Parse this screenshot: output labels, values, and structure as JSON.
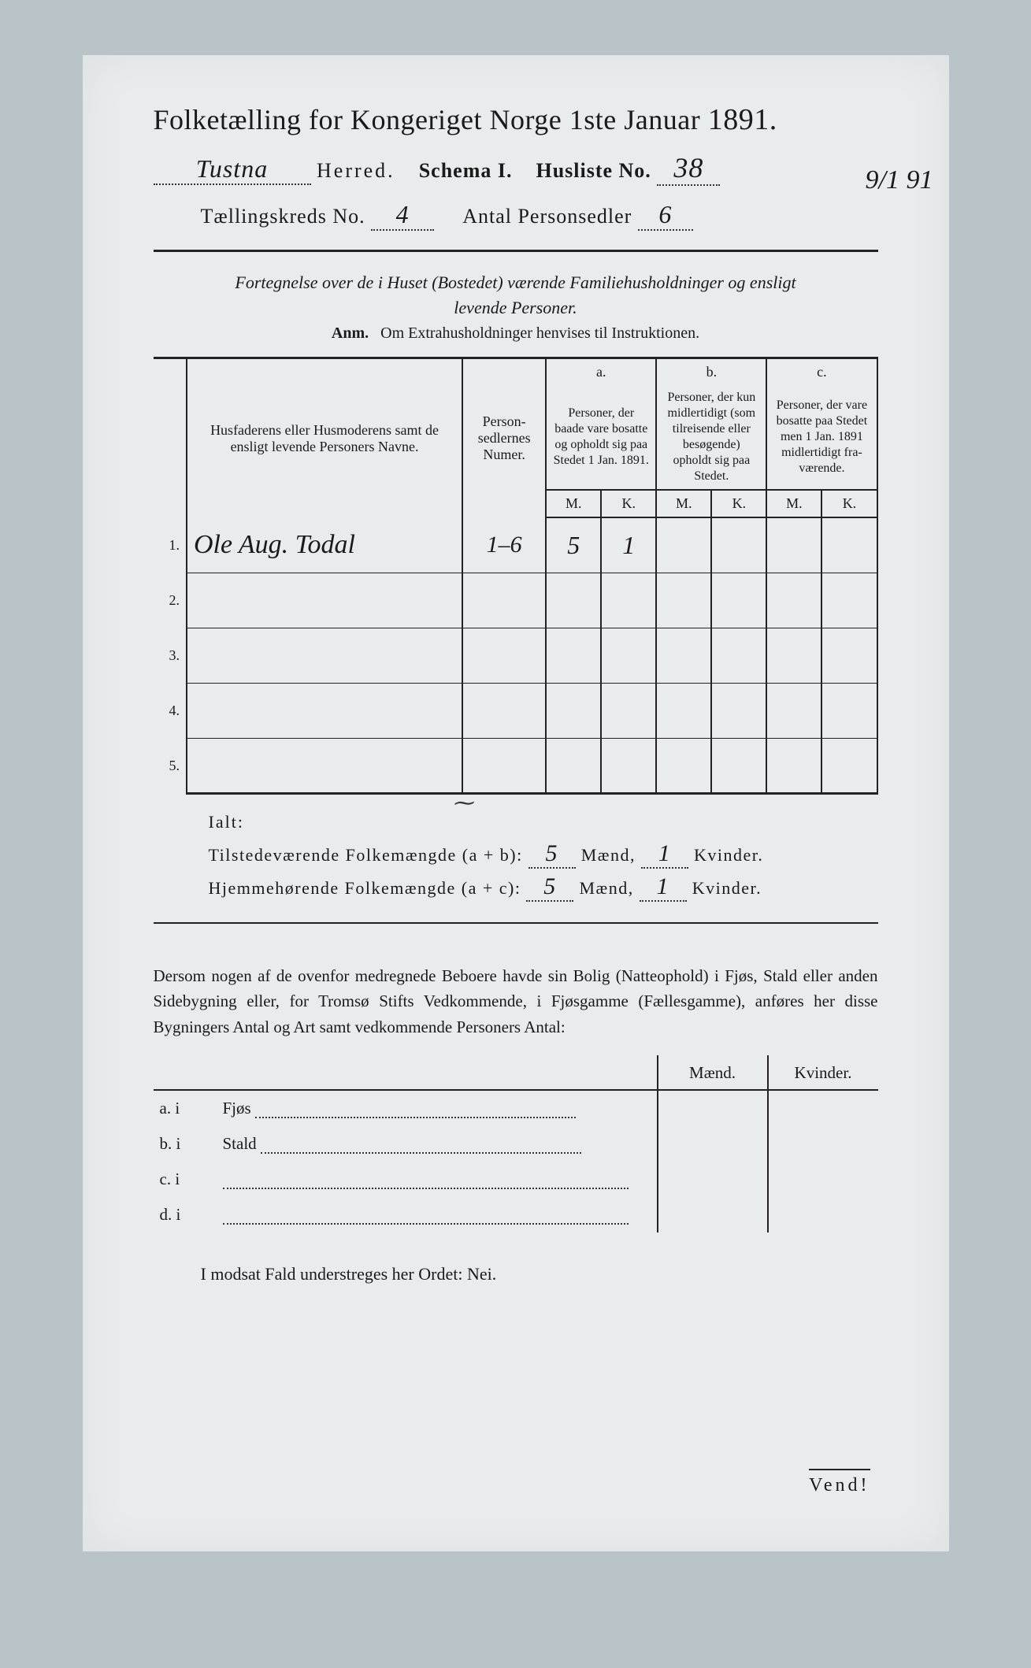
{
  "colors": {
    "page_bg": "#e8ecec",
    "outer_bg": "#b8c4c8",
    "ink": "#1a1a1a",
    "rule": "#222222",
    "dotted": "#333333"
  },
  "typography": {
    "title_size_pt": 36,
    "body_size_pt": 21,
    "handwriting_family": "cursive"
  },
  "header": {
    "title_prefix": "Folketælling for Kongeriget Norge 1ste Januar",
    "year": "1891.",
    "herred_value": "Tustna",
    "herred_label": "Herred.",
    "schema_label": "Schema I.",
    "husliste_label": "Husliste No.",
    "husliste_no": "38",
    "kreds_label": "Tællingskreds No.",
    "kreds_no": "4",
    "antal_label": "Antal Personsedler",
    "antal_value": "6",
    "margin_date": "9/1 91"
  },
  "description": {
    "line1": "Fortegnelse over de i Huset (Bostedet) værende Familiehusholdninger og ensligt",
    "line2": "levende Personer.",
    "anm_label": "Anm.",
    "anm_text": "Om Extrahusholdninger henvises til Instruktionen."
  },
  "table": {
    "type": "table",
    "col_name": "Husfaderens eller Husmode­rens samt de ensligt levende Personers Navne.",
    "col_num": "Person­sedler­nes Numer.",
    "col_a_label": "a.",
    "col_a_text": "Personer, der baade vare bo­satte og opholdt sig paa Stedet 1 Jan. 1891.",
    "col_b_label": "b.",
    "col_b_text": "Personer, der kun midler­tidigt (som tilreisende eller besøgende) opholdt sig paa Stedet.",
    "col_c_label": "c.",
    "col_c_text": "Personer, der vare bosatte paa Stedet men 1 Jan. 1891 midler­tidigt fra­værende.",
    "sub_m": "M.",
    "sub_k": "K.",
    "rows": [
      {
        "n": "1.",
        "name": "Ole Aug. Todal",
        "num": "1–6",
        "a_m": "5",
        "a_k": "1",
        "b_m": "",
        "b_k": "",
        "c_m": "",
        "c_k": ""
      },
      {
        "n": "2.",
        "name": "",
        "num": "",
        "a_m": "",
        "a_k": "",
        "b_m": "",
        "b_k": "",
        "c_m": "",
        "c_k": ""
      },
      {
        "n": "3.",
        "name": "",
        "num": "",
        "a_m": "",
        "a_k": "",
        "b_m": "",
        "b_k": "",
        "c_m": "",
        "c_k": ""
      },
      {
        "n": "4.",
        "name": "",
        "num": "",
        "a_m": "",
        "a_k": "",
        "b_m": "",
        "b_k": "",
        "c_m": "",
        "c_k": ""
      },
      {
        "n": "5.",
        "name": "",
        "num": "",
        "a_m": "",
        "a_k": "",
        "b_m": "",
        "b_k": "",
        "c_m": "",
        "c_k": ""
      }
    ],
    "col_widths": {
      "rownum": 40,
      "name": 330,
      "num": 100,
      "mk": 66
    }
  },
  "totals": {
    "ialt": "Ialt:",
    "tilstede_label": "Tilstedeværende Folkemængde (a + b):",
    "hjemme_label": "Hjemmehørende Folkemængde (a + c):",
    "tilstede_m": "5",
    "tilstede_k": "1",
    "hjemme_m": "5",
    "hjemme_k": "1",
    "maend": "Mænd,",
    "kvinder": "Kvinder."
  },
  "paragraph": {
    "text": "Dersom nogen af de ovenfor medregnede Beboere havde sin Bolig (Natte­ophold) i Fjøs, Stald eller anden Sidebygning eller, for Tromsø Stifts Ved­kommende, i Fjøsgamme (Fællesgamme), anføres her disse Bygningers Antal og Art samt vedkommende Personers Antal:"
  },
  "bottom_table": {
    "maend": "Mænd.",
    "kvinder": "Kvinder.",
    "rows": [
      {
        "label": "a.  i",
        "text": "Fjøs"
      },
      {
        "label": "b.  i",
        "text": "Stald"
      },
      {
        "label": "c.  i",
        "text": ""
      },
      {
        "label": "d.  i",
        "text": ""
      }
    ]
  },
  "footer": {
    "nei_line": "I modsat Fald understreges her Ordet: Nei.",
    "vend": "Vend!"
  }
}
